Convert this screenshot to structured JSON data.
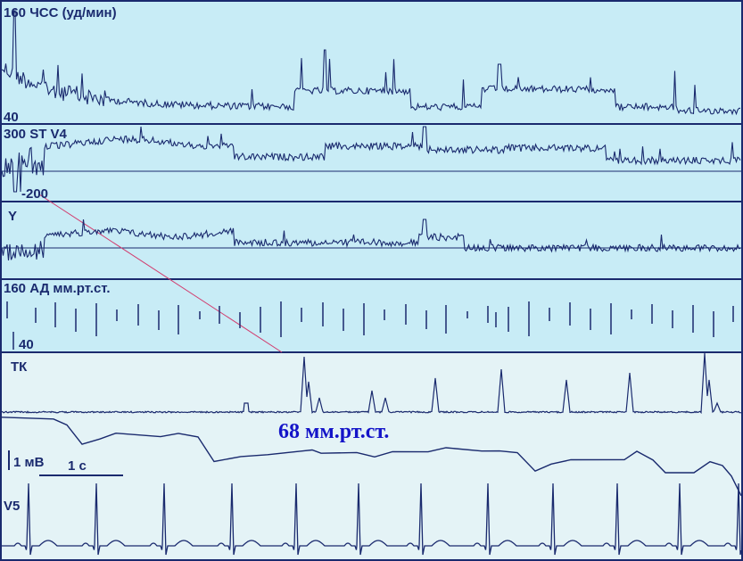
{
  "colors": {
    "panel_bg": "#c8ecf6",
    "panel_bg_bottom": "#e4f3f6",
    "border": "#1a2a6e",
    "trace": "#1a2a6e",
    "connector": "#d23c6e",
    "annotation": "#1414c8"
  },
  "chart_data": {
    "type": "line",
    "panels": [
      {
        "id": "hr",
        "label_top": "160 ЧСС (уд/мин)",
        "label_bottom": "40",
        "series_kind": "trend-noisy"
      },
      {
        "id": "st",
        "label_top": "300 ST V4",
        "label_bottom": "-200",
        "series_kind": "trend-noisy-baseline"
      },
      {
        "id": "y",
        "label_top": "Y",
        "label_bottom": "",
        "series_kind": "trend-noisy-baseline"
      },
      {
        "id": "bp",
        "label_top": "160 АД мм.рт.ст.",
        "label_bottom": "40",
        "series_kind": "vertical-ticks"
      },
      {
        "id": "tk",
        "label_top": "ТК",
        "label_bottom": "",
        "series_kind": "spikes"
      },
      {
        "id": "bp_detail",
        "label_top": "",
        "label_bottom": "",
        "series_kind": "step"
      },
      {
        "id": "v5",
        "label_top": "V5",
        "label_bottom": "",
        "series_kind": "ecg"
      }
    ],
    "annotation": "68 мм.рт.ст.",
    "scale_voltage": "1 мВ",
    "scale_time": "1 с"
  }
}
